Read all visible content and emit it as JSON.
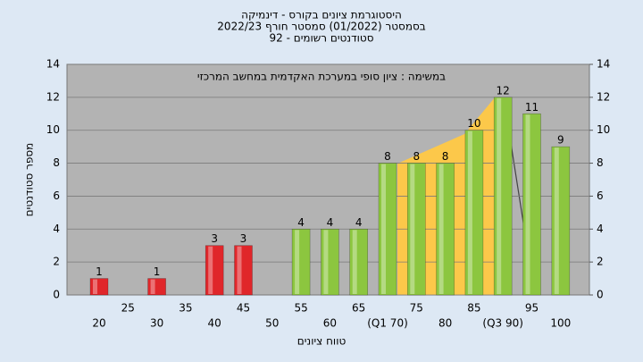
{
  "chart_data": {
    "type": "bar",
    "title": [
      "היסטוגרמת ציונים בקורס - דינמיקה",
      "בסמסטר  (01/2022)  סמסטר חורף 2022/23",
      "סטודנטים רשומים - 92"
    ],
    "annotation": "במשימה : ציון סופי במערכת האקדמית במחשב המרכזי",
    "xlabel": "טווח ציונים",
    "ylabel": "מספר סטודנטים",
    "categories": [
      "20",
      "25",
      "30",
      "35",
      "40",
      "45",
      "50",
      "55",
      "60",
      "65",
      "(Q1 70)",
      "75",
      "80",
      "85",
      "(Q3 90)",
      "95",
      "100"
    ],
    "values": [
      1,
      null,
      1,
      null,
      3,
      3,
      null,
      4,
      4,
      4,
      8,
      8,
      8,
      10,
      12,
      11,
      9
    ],
    "colors": [
      "#e0262a",
      null,
      "#e0262a",
      null,
      "#e0262a",
      "#e0262a",
      null,
      "#8cc63f",
      "#8cc63f",
      "#8cc63f",
      "#8cc63f",
      "#8cc63f",
      "#8cc63f",
      "#8cc63f",
      "#8cc63f",
      "#8cc63f",
      "#8cc63f"
    ],
    "ylim": [
      0,
      14
    ],
    "yticks": [
      0,
      2,
      4,
      6,
      8,
      10,
      12,
      14
    ],
    "y2ticks": [
      0,
      2,
      4,
      6,
      8,
      10,
      12,
      14
    ],
    "grid": true
  }
}
